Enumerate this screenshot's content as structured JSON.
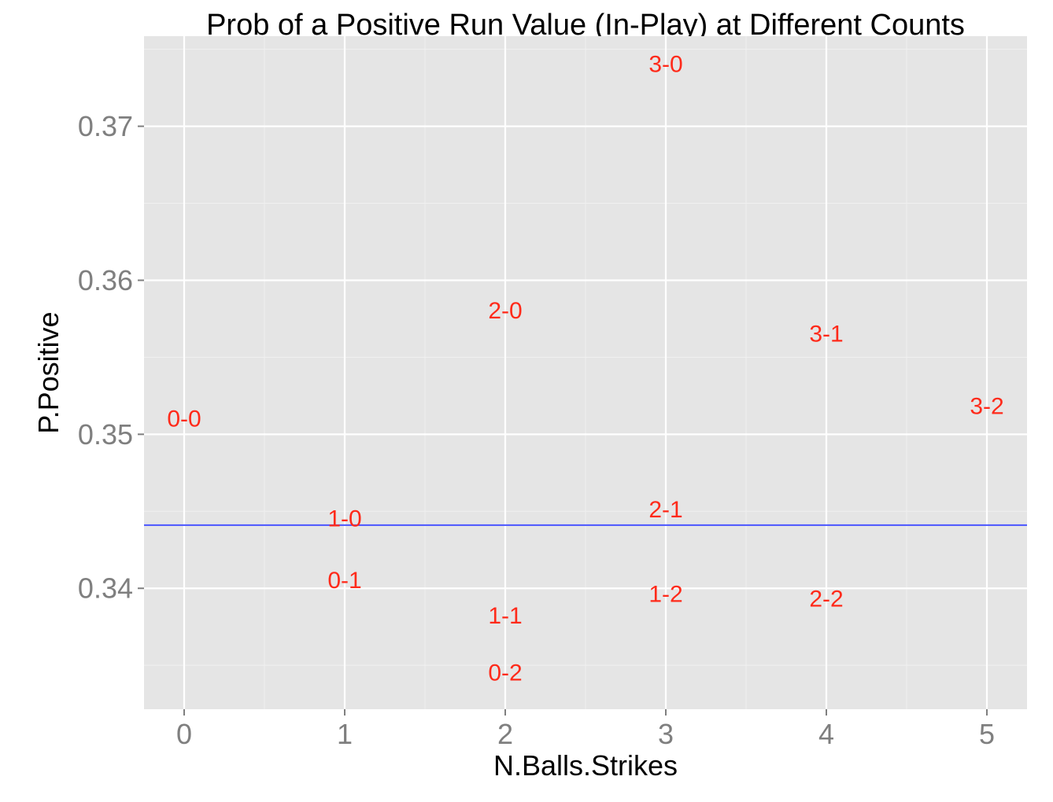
{
  "chart_data": {
    "type": "scatter",
    "title": "Prob of a Positive Run Value (In-Play) at Different Counts",
    "xlabel": "N.Balls.Strikes",
    "ylabel": "P.Positive",
    "xlim": [
      -0.25,
      5.25
    ],
    "ylim": [
      0.33215,
      0.37585
    ],
    "x_ticks": [
      0,
      1,
      2,
      3,
      4,
      5
    ],
    "y_ticks": [
      0.34,
      0.35,
      0.36,
      0.37
    ],
    "x_tick_labels": [
      "0",
      "1",
      "2",
      "3",
      "4",
      "5"
    ],
    "y_tick_labels": [
      "0.34",
      "0.35",
      "0.36",
      "0.37"
    ],
    "grid": true,
    "label_color": "#ff2a1a",
    "reference_line": {
      "y": 0.3441,
      "color": "#4a55ff"
    },
    "points": [
      {
        "label": "0-0",
        "x": 0,
        "y": 0.351
      },
      {
        "label": "1-0",
        "x": 1,
        "y": 0.3445
      },
      {
        "label": "0-1",
        "x": 1,
        "y": 0.3405
      },
      {
        "label": "2-0",
        "x": 2,
        "y": 0.358
      },
      {
        "label": "1-1",
        "x": 2,
        "y": 0.3382
      },
      {
        "label": "0-2",
        "x": 2,
        "y": 0.3345
      },
      {
        "label": "3-0",
        "x": 3,
        "y": 0.374
      },
      {
        "label": "2-1",
        "x": 3,
        "y": 0.3451
      },
      {
        "label": "1-2",
        "x": 3,
        "y": 0.3396
      },
      {
        "label": "3-1",
        "x": 4,
        "y": 0.3565
      },
      {
        "label": "2-2",
        "x": 4,
        "y": 0.3393
      },
      {
        "label": "3-2",
        "x": 5,
        "y": 0.3518
      }
    ]
  }
}
